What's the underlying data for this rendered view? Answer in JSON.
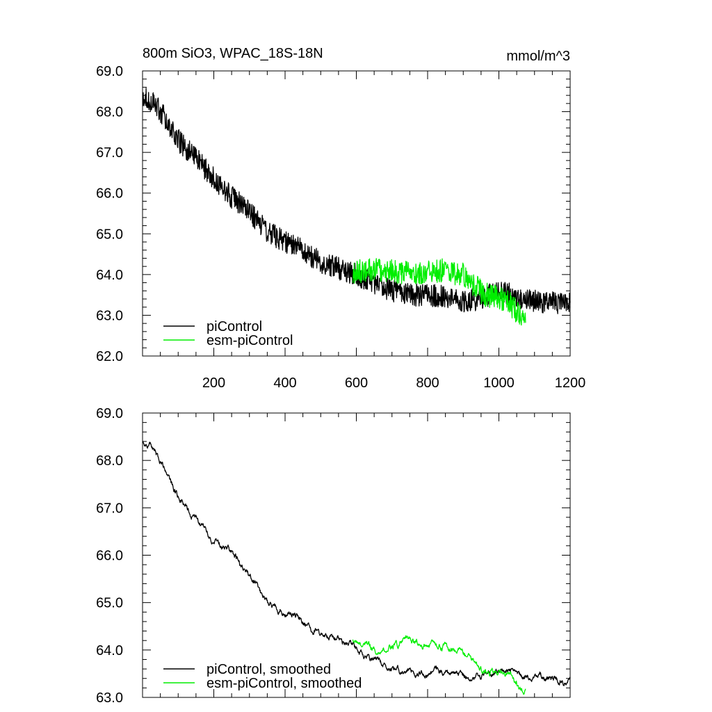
{
  "figure": {
    "title_left": "800m SiO3, WPAC_18S-18N",
    "title_right": "mmol/m^3"
  },
  "colors": {
    "picontrol": "#000000",
    "esm": "#00ee00"
  },
  "chart_data": [
    {
      "type": "line",
      "title": "800m SiO3, WPAC_18S-18N",
      "units": "mmol/m^3",
      "xlabel": "",
      "ylabel": "",
      "xlim": [
        0,
        1200
      ],
      "ylim": [
        62.0,
        69.0
      ],
      "yticks": [
        "62.0",
        "63.0",
        "64.0",
        "65.0",
        "66.0",
        "67.0",
        "68.0",
        "69.0"
      ],
      "xticks": [
        "200",
        "400",
        "600",
        "800",
        "1000",
        "1200"
      ],
      "legend": [
        "piControl",
        "esm-piControl"
      ],
      "legend_position": "bottom-left",
      "series": [
        {
          "name": "piControl",
          "color": "#000000",
          "noise": 0.28,
          "x": [
            0,
            30,
            60,
            100,
            150,
            200,
            250,
            300,
            350,
            400,
            450,
            500,
            550,
            600,
            650,
            700,
            750,
            800,
            850,
            900,
            950,
            1000,
            1050,
            1100,
            1150,
            1200
          ],
          "y": [
            68.4,
            68.25,
            67.9,
            67.3,
            66.85,
            66.35,
            65.9,
            65.55,
            65.05,
            64.8,
            64.6,
            64.3,
            64.15,
            64.0,
            63.8,
            63.6,
            63.5,
            63.5,
            63.45,
            63.35,
            63.4,
            63.6,
            63.45,
            63.35,
            63.3,
            63.3
          ]
        },
        {
          "name": "esm-piControl",
          "color": "#00ee00",
          "noise": 0.3,
          "x": [
            590,
            620,
            660,
            700,
            750,
            800,
            850,
            900,
            930,
            960,
            1000,
            1030,
            1060,
            1075
          ],
          "y": [
            64.05,
            64.1,
            64.1,
            64.1,
            64.05,
            64.05,
            64.1,
            64.0,
            63.75,
            63.5,
            63.45,
            63.3,
            63.0,
            63.0
          ]
        }
      ]
    },
    {
      "type": "line",
      "title": "",
      "xlabel": "",
      "ylabel": "",
      "xlim": [
        0,
        1200
      ],
      "ylim": [
        63.0,
        69.0
      ],
      "yticks": [
        "63.0",
        "64.0",
        "65.0",
        "66.0",
        "67.0",
        "68.0",
        "69.0"
      ],
      "legend": [
        "piControl, smoothed",
        "esm-piControl, smoothed"
      ],
      "legend_position": "bottom-left",
      "series": [
        {
          "name": "piControl, smoothed",
          "color": "#000000",
          "noise": 0.08,
          "x": [
            0,
            30,
            60,
            100,
            150,
            200,
            250,
            300,
            350,
            400,
            450,
            500,
            550,
            600,
            650,
            700,
            750,
            800,
            850,
            900,
            950,
            1000,
            1050,
            1100,
            1150,
            1200
          ],
          "y": [
            68.4,
            68.25,
            67.8,
            67.25,
            66.75,
            66.3,
            66.05,
            65.55,
            65.0,
            64.8,
            64.6,
            64.3,
            64.2,
            64.05,
            63.8,
            63.6,
            63.55,
            63.5,
            63.5,
            63.45,
            63.4,
            63.6,
            63.45,
            63.45,
            63.4,
            63.3
          ]
        },
        {
          "name": "esm-piControl, smoothed",
          "color": "#00ee00",
          "noise": 0.08,
          "x": [
            590,
            620,
            660,
            700,
            750,
            800,
            850,
            900,
            930,
            960,
            1000,
            1030,
            1060,
            1075
          ],
          "y": [
            64.25,
            64.15,
            64.0,
            64.1,
            64.2,
            64.1,
            64.05,
            63.95,
            63.75,
            63.5,
            63.5,
            63.45,
            63.2,
            63.15
          ]
        }
      ]
    }
  ]
}
